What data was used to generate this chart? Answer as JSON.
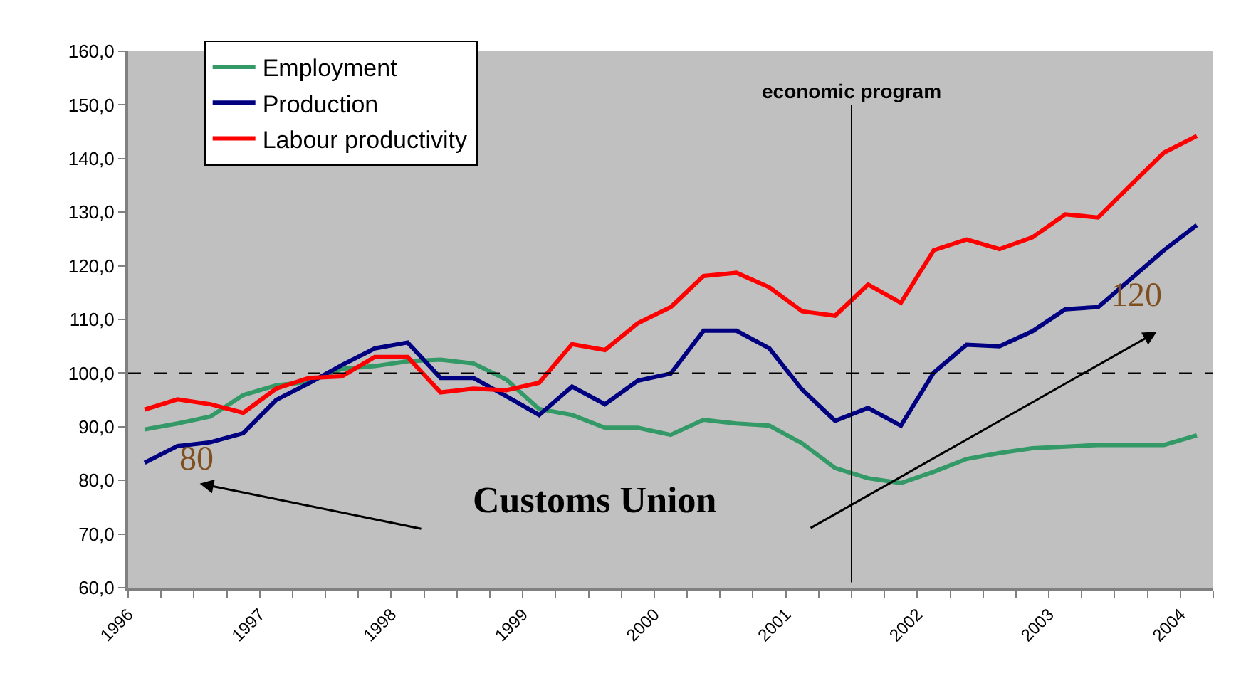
{
  "chart_data": {
    "type": "line",
    "x": [
      1996.125,
      1996.375,
      1996.625,
      1996.875,
      1997.125,
      1997.375,
      1997.625,
      1997.875,
      1998.125,
      1998.375,
      1998.625,
      1998.875,
      1999.125,
      1999.375,
      1999.625,
      1999.875,
      2000.125,
      2000.375,
      2000.625,
      2000.875,
      2001.125,
      2001.375,
      2001.625,
      2001.875,
      2002.125,
      2002.375,
      2002.625,
      2002.875,
      2003.125,
      2003.375,
      2003.625,
      2003.875,
      2004.125
    ],
    "series": [
      {
        "name": "Employment",
        "color": "#339966",
        "values": [
          89.5,
          90.6,
          91.9,
          95.9,
          97.7,
          98.4,
          100.8,
          101.3,
          102.2,
          102.5,
          101.8,
          98.8,
          93.3,
          92.2,
          89.8,
          89.8,
          88.5,
          91.3,
          90.6,
          90.2,
          86.9,
          82.3,
          80.4,
          79.5,
          81.6,
          84.0,
          85.1,
          86.0,
          86.3,
          86.6,
          86.6,
          86.6,
          88.4
        ]
      },
      {
        "name": "Production",
        "color": "#000080",
        "values": [
          83.3,
          86.4,
          87.1,
          88.8,
          95.0,
          98.1,
          101.5,
          104.6,
          105.7,
          99.1,
          99.1,
          95.7,
          92.2,
          97.5,
          94.2,
          98.6,
          99.9,
          107.9,
          107.9,
          104.6,
          96.9,
          91.1,
          93.5,
          90.2,
          100.1,
          105.3,
          105.0,
          107.8,
          111.9,
          112.3,
          117.6,
          122.9,
          127.6
        ]
      },
      {
        "name": "Labour productivity",
        "color": "#ff0000",
        "values": [
          93.2,
          95.1,
          94.2,
          92.6,
          97.1,
          99.1,
          99.4,
          103.0,
          103.0,
          96.4,
          97.1,
          96.8,
          98.2,
          105.4,
          104.3,
          109.3,
          112.3,
          118.1,
          118.7,
          116.0,
          111.5,
          110.7,
          116.5,
          113.1,
          122.9,
          124.9,
          123.1,
          125.3,
          129.6,
          129.0,
          135.1,
          141.1,
          144.2
        ]
      }
    ],
    "xlim": [
      1996,
      2004.25
    ],
    "xticks": [
      {
        "value": 1996,
        "label": "1996"
      },
      {
        "value": 1996.25,
        "label": null
      },
      {
        "value": 1996.5,
        "label": null
      },
      {
        "value": 1996.75,
        "label": null
      },
      {
        "value": 1997,
        "label": "1997"
      },
      {
        "value": 1997.25,
        "label": null
      },
      {
        "value": 1997.5,
        "label": null
      },
      {
        "value": 1997.75,
        "label": null
      },
      {
        "value": 1998,
        "label": "1998"
      },
      {
        "value": 1998.25,
        "label": null
      },
      {
        "value": 1998.5,
        "label": null
      },
      {
        "value": 1998.75,
        "label": null
      },
      {
        "value": 1999,
        "label": "1999"
      },
      {
        "value": 1999.25,
        "label": null
      },
      {
        "value": 1999.5,
        "label": null
      },
      {
        "value": 1999.75,
        "label": null
      },
      {
        "value": 2000,
        "label": "2000"
      },
      {
        "value": 2000.25,
        "label": null
      },
      {
        "value": 2000.5,
        "label": null
      },
      {
        "value": 2000.75,
        "label": null
      },
      {
        "value": 2001,
        "label": "2001"
      },
      {
        "value": 2001.25,
        "label": null
      },
      {
        "value": 2001.5,
        "label": null
      },
      {
        "value": 2001.75,
        "label": null
      },
      {
        "value": 2002,
        "label": "2002"
      },
      {
        "value": 2002.25,
        "label": null
      },
      {
        "value": 2002.5,
        "label": null
      },
      {
        "value": 2002.75,
        "label": null
      },
      {
        "value": 2003,
        "label": "2003"
      },
      {
        "value": 2003.25,
        "label": null
      },
      {
        "value": 2003.5,
        "label": null
      },
      {
        "value": 2003.75,
        "label": null
      },
      {
        "value": 2004,
        "label": "2004"
      },
      {
        "value": 2004.25,
        "label": null
      }
    ],
    "ylim": [
      60,
      160
    ],
    "yticks": [
      {
        "value": 60,
        "label": "60,0"
      },
      {
        "value": 70,
        "label": "70,0"
      },
      {
        "value": 80,
        "label": "80,0"
      },
      {
        "value": 90,
        "label": "90,0"
      },
      {
        "value": 100,
        "label": "100,0"
      },
      {
        "value": 110,
        "label": "110,0"
      },
      {
        "value": 120,
        "label": "120,0"
      },
      {
        "value": 130,
        "label": "130,0"
      },
      {
        "value": 140,
        "label": "140,0"
      },
      {
        "value": 150,
        "label": "150,0"
      },
      {
        "value": 160,
        "label": "160,0"
      }
    ],
    "ref_lines": [
      {
        "axis": "y",
        "value": 100,
        "label": null,
        "color": "#000000",
        "line_style": "dashed"
      },
      {
        "axis": "x",
        "value": 2001.5,
        "label": "economic program",
        "color": "#000000",
        "line_style": "solid"
      }
    ],
    "annotations": [
      "80",
      "120",
      "Customs Union"
    ],
    "grid": false,
    "legend": "top left",
    "marker": "none",
    "line_style": "solid"
  }
}
